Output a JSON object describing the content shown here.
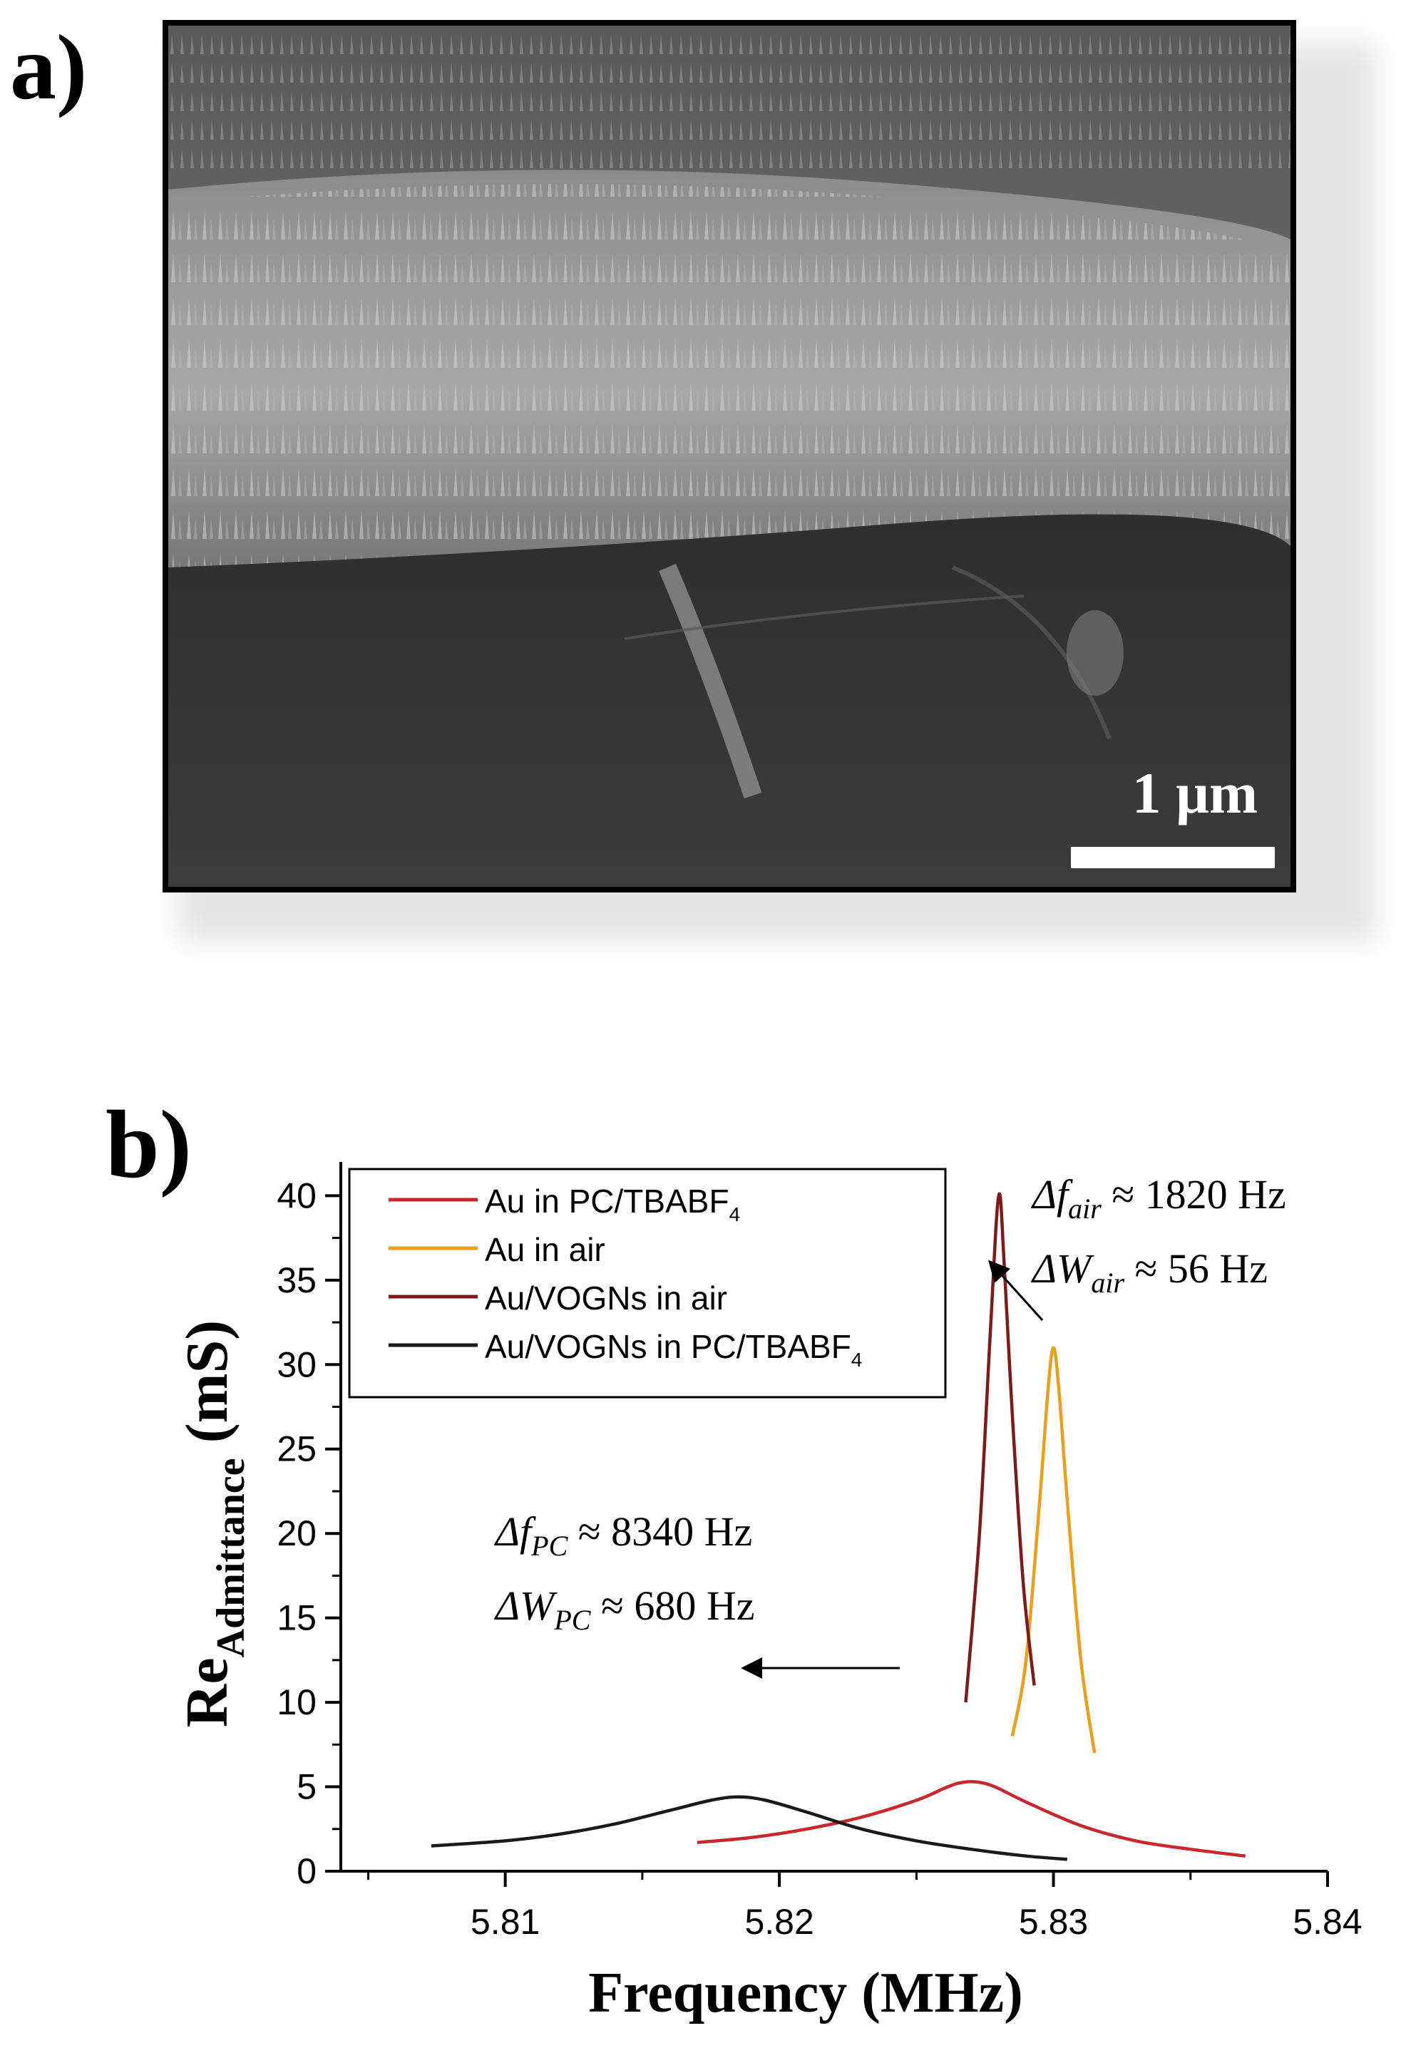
{
  "panels": {
    "a": {
      "label": "a)",
      "scale_bar_text": "1 μm"
    },
    "b": {
      "label": "b)"
    }
  },
  "chart_data": {
    "type": "line",
    "xlabel": "Frequency (MHz)",
    "ylabel": {
      "main": "Re",
      "subscript": "Admittance",
      "unit": "(mS)"
    },
    "xlim": [
      5.804,
      5.84
    ],
    "ylim": [
      0,
      42
    ],
    "xticks": [
      5.81,
      5.82,
      5.83,
      5.84
    ],
    "xtick_labels": [
      "5.81",
      "5.82",
      "5.83",
      "5.84"
    ],
    "yticks": [
      0,
      5,
      10,
      15,
      20,
      25,
      30,
      35,
      40
    ],
    "ytick_labels": [
      "0",
      "5",
      "10",
      "15",
      "20",
      "25",
      "30",
      "35",
      "40"
    ],
    "grid": false,
    "legend_position": "top-left",
    "series": [
      {
        "name": "Au in PC/TBABF",
        "name_subscript": "4",
        "color": "#c8282d",
        "x": [
          5.817,
          5.819,
          5.821,
          5.823,
          5.825,
          5.826,
          5.8265,
          5.827,
          5.8275,
          5.828,
          5.829,
          5.831,
          5.833,
          5.835,
          5.837
        ],
        "y": [
          1.7,
          2.0,
          2.5,
          3.2,
          4.2,
          4.9,
          5.2,
          5.3,
          5.2,
          4.9,
          4.1,
          2.7,
          1.8,
          1.3,
          0.9
        ]
      },
      {
        "name": "Au in air",
        "color": "#e8a020",
        "x": [
          5.8285,
          5.829,
          5.8295,
          5.8298,
          5.83,
          5.8302,
          5.8305,
          5.831,
          5.8315
        ],
        "y": [
          8.0,
          12.5,
          22.0,
          28.5,
          31.0,
          28.5,
          22.0,
          12.5,
          7.0
        ]
      },
      {
        "name": "Au/VOGNs in air",
        "color": "#7a1c1c",
        "x": [
          5.8268,
          5.8273,
          5.8277,
          5.828,
          5.8282,
          5.8285,
          5.8289,
          5.8293
        ],
        "y": [
          10.0,
          20.0,
          32.0,
          40.0,
          36.0,
          27.0,
          17.0,
          11.0
        ]
      },
      {
        "name": "Au/VOGNs in PC/TBABF",
        "name_subscript": "4",
        "color": "#1a1a1a",
        "x": [
          5.8073,
          5.81,
          5.812,
          5.814,
          5.816,
          5.8175,
          5.8185,
          5.8195,
          5.821,
          5.823,
          5.825,
          5.827,
          5.829,
          5.8305
        ],
        "y": [
          1.5,
          1.8,
          2.2,
          2.8,
          3.6,
          4.2,
          4.4,
          4.2,
          3.5,
          2.5,
          1.8,
          1.3,
          0.9,
          0.7
        ]
      }
    ],
    "annotations": [
      {
        "lines": [
          {
            "var": "Δf",
            "sub": "air",
            "rest": " ≈ 1820 Hz"
          },
          {
            "var": "ΔW",
            "sub": "air",
            "rest": " ≈ 56 Hz"
          }
        ]
      },
      {
        "lines": [
          {
            "var": "Δf",
            "sub": "PC",
            "rest": " ≈ 8340 Hz"
          },
          {
            "var": "ΔW",
            "sub": "PC",
            "rest": " ≈ 680 Hz"
          }
        ]
      }
    ]
  }
}
